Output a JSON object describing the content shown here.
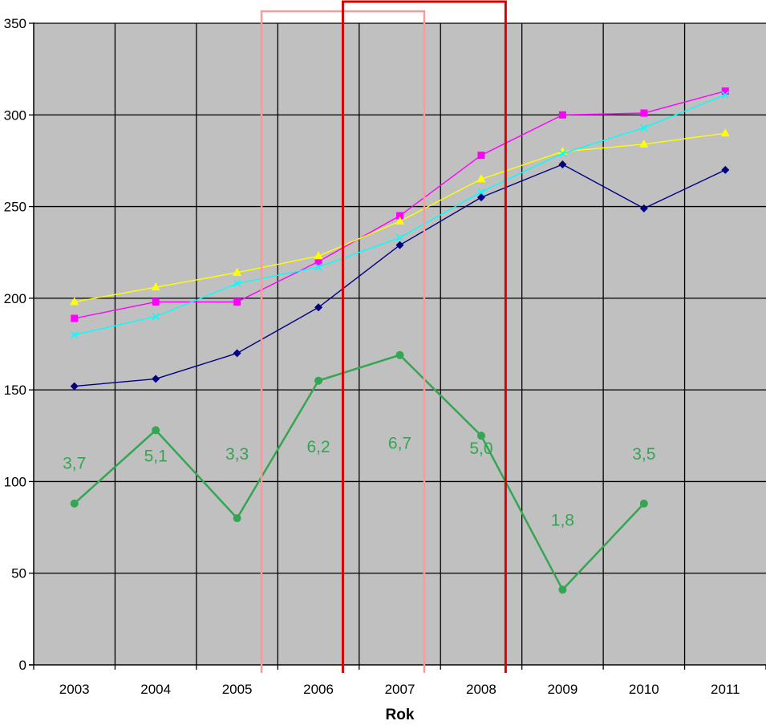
{
  "chart_data": {
    "type": "line",
    "title": "",
    "xlabel": "Rok",
    "ylabel": "",
    "categories": [
      "2003",
      "2004",
      "2005",
      "2006",
      "2007",
      "2008",
      "2009",
      "2010",
      "2011"
    ],
    "ylim": [
      0,
      350
    ],
    "yticks": [
      0,
      50,
      100,
      150,
      200,
      250,
      300,
      350
    ],
    "grid": true,
    "plot_background": "#c0c0c0",
    "series": [
      {
        "color": "#000080",
        "marker": "diamond",
        "values": [
          152,
          156,
          170,
          195,
          229,
          255,
          273,
          249,
          270
        ]
      },
      {
        "color": "#ff00ff",
        "marker": "square",
        "values": [
          189,
          198,
          198,
          220,
          245,
          278,
          300,
          301,
          313
        ]
      },
      {
        "color": "#ffff00",
        "marker": "triangle",
        "values": [
          198,
          206,
          214,
          223,
          242,
          265,
          280,
          284,
          290
        ]
      },
      {
        "color": "#00ffff",
        "marker": "x",
        "values": [
          180,
          190,
          208,
          217,
          233,
          258,
          279,
          293,
          311
        ]
      },
      {
        "color": "#33a652",
        "marker": "circle",
        "values": [
          88,
          128,
          80,
          155,
          169,
          125,
          41,
          88,
          null
        ],
        "data_labels": [
          "3,7",
          "5,1",
          "3,3",
          "6,2",
          "6,7",
          "5,0",
          "1,8",
          "3,5",
          ""
        ],
        "label_values": [
          107,
          111,
          112,
          116,
          118,
          115,
          76,
          112,
          null
        ]
      }
    ],
    "highlights": [
      {
        "color": "#ff9999",
        "from": 2005.3,
        "to": 2007.3
      },
      {
        "color": "#dd0000",
        "from": 2006.3,
        "to": 2008.3
      }
    ]
  }
}
